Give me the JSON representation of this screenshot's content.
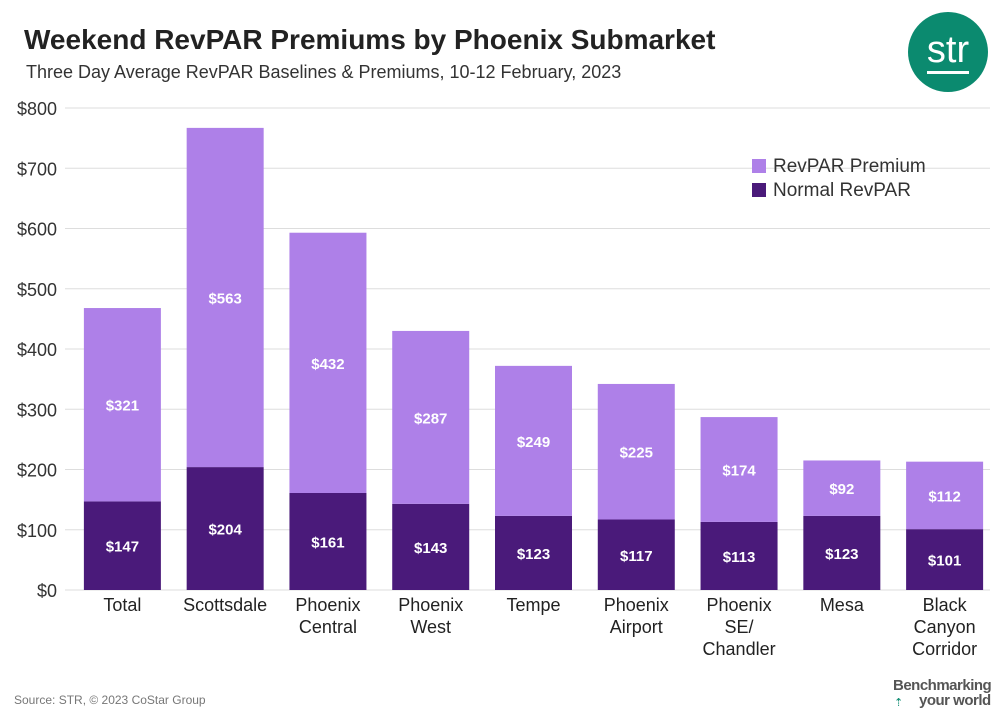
{
  "header": {
    "title": "Weekend RevPAR Premiums by Phoenix Submarket",
    "subtitle": "Three Day Average RevPAR Baselines & Premiums, 10-12 February, 2023"
  },
  "logo": {
    "text": "str",
    "color": "#0b8a6f"
  },
  "footer": {
    "source": "Source: STR, © 2023 CoStar Group",
    "tagline_line1": "Benchmarking",
    "tagline_line2": "your world"
  },
  "chart_data": {
    "type": "bar",
    "stacked": true,
    "categories": [
      [
        "Total"
      ],
      [
        "Scottsdale"
      ],
      [
        "Phoenix",
        "Central"
      ],
      [
        "Phoenix",
        "West"
      ],
      [
        "Tempe"
      ],
      [
        "Phoenix",
        "Airport"
      ],
      [
        "Phoenix",
        "SE/",
        "Chandler"
      ],
      [
        "Mesa"
      ],
      [
        "Black",
        "Canyon",
        "Corridor"
      ]
    ],
    "series": [
      {
        "name": "Normal RevPAR",
        "color": "#4a1a7a",
        "values": [
          147,
          204,
          161,
          143,
          123,
          117,
          113,
          123,
          101
        ]
      },
      {
        "name": "RevPAR Premium",
        "color": "#ae80e8",
        "values": [
          321,
          563,
          432,
          287,
          249,
          225,
          174,
          92,
          112
        ]
      }
    ],
    "ylim": [
      0,
      800
    ],
    "yticks": [
      0,
      100,
      200,
      300,
      400,
      500,
      600,
      700,
      800
    ],
    "ytick_prefix": "$",
    "data_label_prefix": "$",
    "legend": [
      "RevPAR Premium",
      "Normal RevPAR"
    ],
    "legend_position": "top-right",
    "grid": true
  }
}
